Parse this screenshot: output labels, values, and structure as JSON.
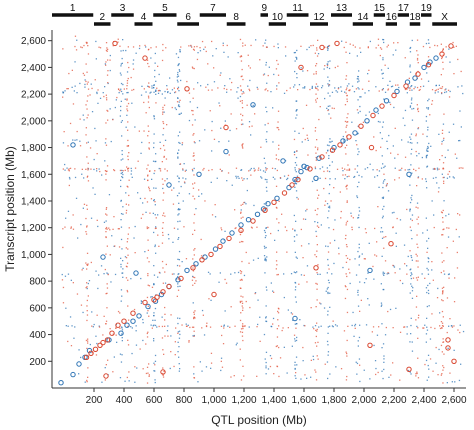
{
  "chart_data": {
    "type": "scatter",
    "xlabel": "QTL position (Mb)",
    "ylabel": "Transcript position (Mb)",
    "xlim": [
      -80,
      2680
    ],
    "ylim": [
      0,
      2680
    ],
    "x_ticks": [
      {
        "value": 200,
        "label": "200"
      },
      {
        "value": 400,
        "label": "400"
      },
      {
        "value": 600,
        "label": "600"
      },
      {
        "value": 800,
        "label": "800"
      },
      {
        "value": 1000,
        "label": "1,000"
      },
      {
        "value": 1200,
        "label": "1,200"
      },
      {
        "value": 1400,
        "label": "1,400"
      },
      {
        "value": 1600,
        "label": "1,600"
      },
      {
        "value": 1800,
        "label": "1,800"
      },
      {
        "value": 2000,
        "label": "2,000"
      },
      {
        "value": 2200,
        "label": "2,200"
      },
      {
        "value": 2400,
        "label": "2,400"
      },
      {
        "value": 2600,
        "label": "2,600"
      }
    ],
    "y_ticks": [
      {
        "value": 200,
        "label": "200"
      },
      {
        "value": 400,
        "label": "400"
      },
      {
        "value": 600,
        "label": "600"
      },
      {
        "value": 800,
        "label": "800"
      },
      {
        "value": 1000,
        "label": "1,000"
      },
      {
        "value": 1200,
        "label": "1,200"
      },
      {
        "value": 1400,
        "label": "1,400"
      },
      {
        "value": 1600,
        "label": "1,600"
      },
      {
        "value": 1800,
        "label": "1,800"
      },
      {
        "value": 2000,
        "label": "2,000"
      },
      {
        "value": 2200,
        "label": "2,200"
      },
      {
        "value": 2400,
        "label": "2,400"
      },
      {
        "value": 2600,
        "label": "2,600"
      }
    ],
    "chromosomes": [
      {
        "label": "1",
        "start": -80,
        "end": 195,
        "row": "top"
      },
      {
        "label": "2",
        "start": 200,
        "end": 310,
        "row": "bottom"
      },
      {
        "label": "3",
        "start": 315,
        "end": 465,
        "row": "top"
      },
      {
        "label": "4",
        "start": 470,
        "end": 590,
        "row": "bottom"
      },
      {
        "label": "5",
        "start": 595,
        "end": 750,
        "row": "top"
      },
      {
        "label": "6",
        "start": 755,
        "end": 900,
        "row": "bottom"
      },
      {
        "label": "7",
        "start": 905,
        "end": 1080,
        "row": "top"
      },
      {
        "label": "8",
        "start": 1085,
        "end": 1210,
        "row": "bottom"
      },
      {
        "label": "9",
        "start": 1310,
        "end": 1360,
        "row": "top"
      },
      {
        "label": "10",
        "start": 1365,
        "end": 1480,
        "row": "bottom"
      },
      {
        "label": "11",
        "start": 1485,
        "end": 1630,
        "row": "top"
      },
      {
        "label": "12",
        "start": 1640,
        "end": 1760,
        "row": "bottom"
      },
      {
        "label": "13",
        "start": 1780,
        "end": 1920,
        "row": "top"
      },
      {
        "label": "14",
        "start": 1925,
        "end": 2060,
        "row": "bottom"
      },
      {
        "label": "15",
        "start": 2065,
        "end": 2140,
        "row": "top"
      },
      {
        "label": "16",
        "start": 2145,
        "end": 2220,
        "row": "bottom"
      },
      {
        "label": "17",
        "start": 2225,
        "end": 2300,
        "row": "top"
      },
      {
        "label": "18",
        "start": 2305,
        "end": 2375,
        "row": "bottom"
      },
      {
        "label": "19",
        "start": 2380,
        "end": 2450,
        "row": "top"
      },
      {
        "label": "X",
        "start": 2455,
        "end": 2620,
        "row": "bottom"
      }
    ],
    "series": [
      {
        "marker": "dot",
        "color_hex": "#2e74b5",
        "density": 1300,
        "dense_x_stripes": [
          380,
          600,
          760,
          1340,
          1540,
          1760,
          1960,
          2120,
          2310,
          2420
        ],
        "dense_y_bands": [
          1640,
          1580,
          2260,
          2220,
          470,
          860,
          1850
        ]
      },
      {
        "marker": "dot",
        "color_hex": "#e2553e",
        "density": 1300,
        "dense_x_stripes": [
          150,
          280,
          420,
          560,
          660,
          860,
          1180,
          1420,
          1680,
          1880,
          2350,
          2520
        ],
        "dense_y_bands": [
          1640,
          2240,
          2560,
          460,
          1200
        ]
      },
      {
        "marker": "ring",
        "color_hex": "#2e74b5",
        "points": [
          [
            -20,
            40
          ],
          [
            60,
            100
          ],
          [
            100,
            180
          ],
          [
            140,
            230
          ],
          [
            170,
            280
          ],
          [
            380,
            410
          ],
          [
            420,
            470
          ],
          [
            460,
            500
          ],
          [
            500,
            540
          ],
          [
            560,
            610
          ],
          [
            610,
            650
          ],
          [
            650,
            700
          ],
          [
            700,
            760
          ],
          [
            760,
            810
          ],
          [
            820,
            880
          ],
          [
            880,
            930
          ],
          [
            940,
            980
          ],
          [
            1010,
            1040
          ],
          [
            1060,
            1100
          ],
          [
            1120,
            1160
          ],
          [
            1180,
            1220
          ],
          [
            1230,
            1260
          ],
          [
            1290,
            1300
          ],
          [
            1330,
            1340
          ],
          [
            1360,
            1380
          ],
          [
            1420,
            1420
          ],
          [
            1500,
            1500
          ],
          [
            1540,
            1560
          ],
          [
            1580,
            1620
          ],
          [
            1620,
            1650
          ],
          [
            1700,
            1720
          ],
          [
            1800,
            1800
          ],
          [
            1860,
            1850
          ],
          [
            1940,
            1910
          ],
          [
            2020,
            2000
          ],
          [
            2080,
            2080
          ],
          [
            2150,
            2150
          ],
          [
            2220,
            2220
          ],
          [
            2290,
            2290
          ],
          [
            2340,
            2320
          ],
          [
            2400,
            2400
          ],
          [
            2440,
            2440
          ],
          [
            2480,
            2470
          ],
          [
            60,
            1820
          ],
          [
            300,
            360
          ],
          [
            1080,
            1770
          ],
          [
            1260,
            2120
          ],
          [
            2300,
            1600
          ],
          [
            1600,
            1660
          ],
          [
            1460,
            1700
          ],
          [
            700,
            1520
          ],
          [
            480,
            860
          ],
          [
            1540,
            520
          ],
          [
            2040,
            880
          ],
          [
            260,
            980
          ],
          [
            900,
            1600
          ],
          [
            1680,
            1570
          ]
        ]
      },
      {
        "marker": "ring",
        "color_hex": "#d9452e",
        "points": [
          [
            150,
            230
          ],
          [
            180,
            260
          ],
          [
            210,
            290
          ],
          [
            240,
            320
          ],
          [
            260,
            340
          ],
          [
            290,
            360
          ],
          [
            320,
            410
          ],
          [
            360,
            470
          ],
          [
            400,
            500
          ],
          [
            460,
            560
          ],
          [
            540,
            640
          ],
          [
            600,
            660
          ],
          [
            620,
            680
          ],
          [
            660,
            720
          ],
          [
            700,
            760
          ],
          [
            780,
            820
          ],
          [
            860,
            900
          ],
          [
            920,
            960
          ],
          [
            980,
            1000
          ],
          [
            1040,
            1060
          ],
          [
            1100,
            1120
          ],
          [
            1180,
            1180
          ],
          [
            1260,
            1250
          ],
          [
            1340,
            1330
          ],
          [
            1400,
            1390
          ],
          [
            1470,
            1460
          ],
          [
            1560,
            1560
          ],
          [
            1640,
            1640
          ],
          [
            1720,
            1730
          ],
          [
            1790,
            1780
          ],
          [
            1840,
            1820
          ],
          [
            1900,
            1880
          ],
          [
            1980,
            1960
          ],
          [
            2060,
            2040
          ],
          [
            2120,
            2110
          ],
          [
            2200,
            2190
          ],
          [
            2280,
            2260
          ],
          [
            2360,
            2350
          ],
          [
            2430,
            2420
          ],
          [
            2520,
            2500
          ],
          [
            2580,
            2560
          ],
          [
            340,
            2580
          ],
          [
            540,
            2470
          ],
          [
            1720,
            2550
          ],
          [
            1820,
            2580
          ],
          [
            1580,
            2400
          ],
          [
            2300,
            140
          ],
          [
            2560,
            300
          ],
          [
            2600,
            200
          ],
          [
            1520,
            1520
          ],
          [
            1080,
            1950
          ],
          [
            280,
            90
          ],
          [
            2050,
            1800
          ],
          [
            2560,
            360
          ],
          [
            660,
            120
          ],
          [
            1680,
            900
          ],
          [
            1000,
            700
          ],
          [
            2040,
            320
          ],
          [
            820,
            2240
          ],
          [
            2180,
            1080
          ]
        ]
      }
    ]
  }
}
